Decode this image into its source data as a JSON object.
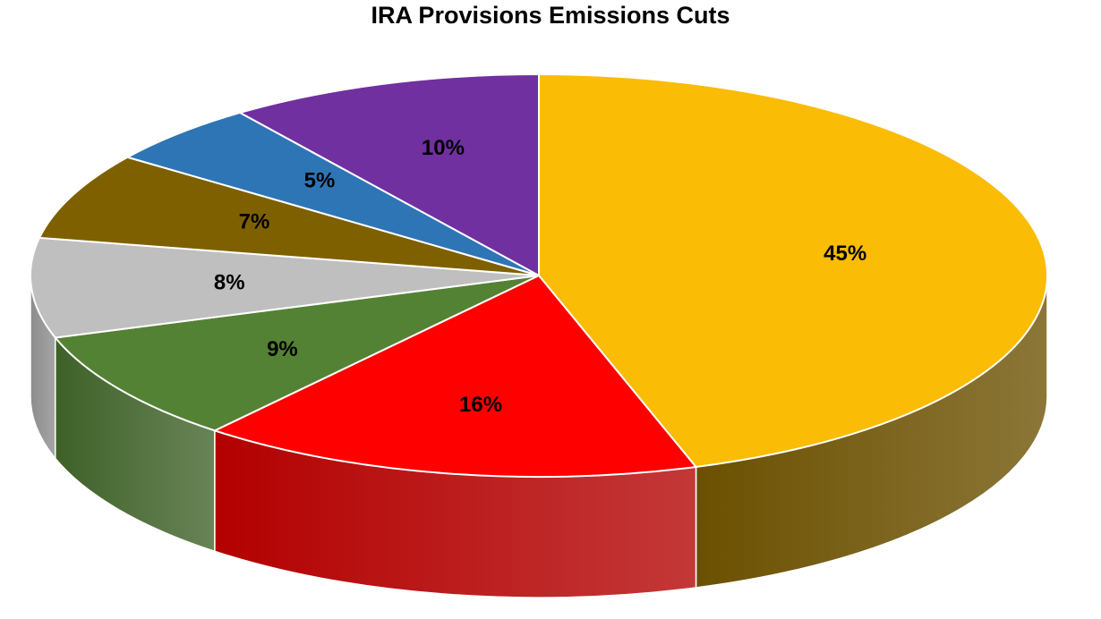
{
  "chart_data": {
    "type": "pie",
    "title": "IRA Provisions Emissions Cuts",
    "style": "3d-tilted",
    "slices": [
      {
        "label": "45%",
        "value": 45,
        "color": "#FBBC05",
        "side_color": "#6B5000"
      },
      {
        "label": "16%",
        "value": 16,
        "color": "#FF0000",
        "side_color": "#B30000"
      },
      {
        "label": "9%",
        "value": 9,
        "color": "#548235",
        "side_color": "#3E6128"
      },
      {
        "label": "8%",
        "value": 8,
        "color": "#BFBFBF",
        "side_color": "#8C8C8C"
      },
      {
        "label": "7%",
        "value": 7,
        "color": "#7F6000",
        "side_color": "#5A4400"
      },
      {
        "label": "5%",
        "value": 5,
        "color": "#2E75B6",
        "side_color": "#1F5280"
      },
      {
        "label": "10%",
        "value": 10,
        "color": "#7030A0",
        "side_color": "#4E2170"
      }
    ]
  }
}
